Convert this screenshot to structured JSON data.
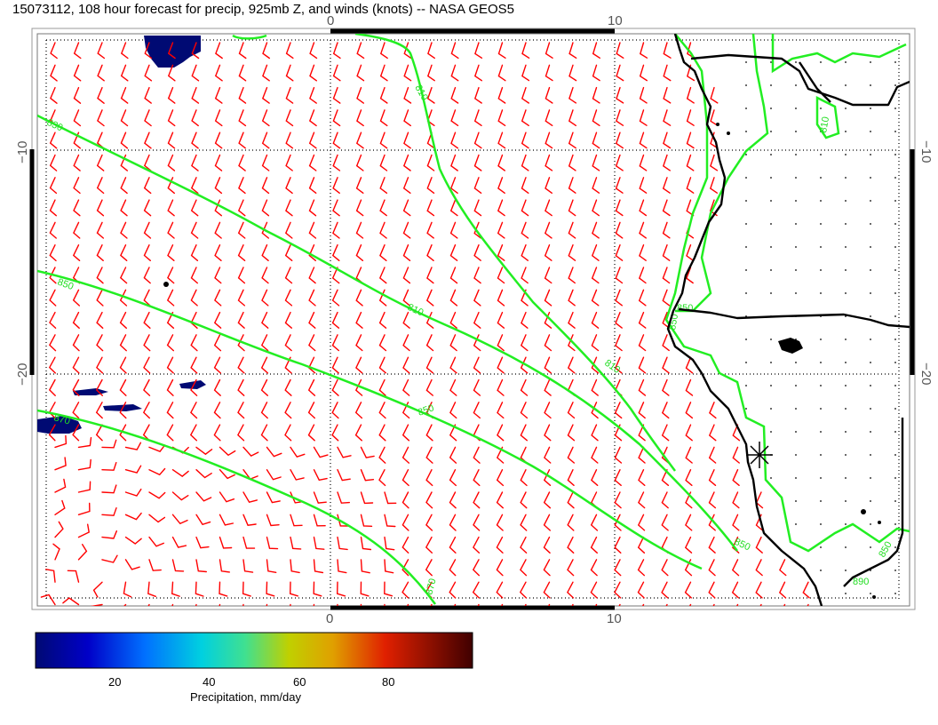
{
  "title": "15073112, 108 hour forecast for precip, 925mb Z, and winds (knots) -- NASA GEOS5",
  "axes": {
    "top_ticks": [
      "0",
      "10"
    ],
    "bottom_ticks": [
      "0",
      "10"
    ],
    "left_ticks": [
      "−10",
      "−20"
    ],
    "right_ticks": [
      "−10",
      "−20"
    ]
  },
  "contour_labels": [
    "830",
    "810",
    "850",
    "810",
    "870",
    "850",
    "810",
    "850",
    "870",
    "850",
    "850",
    "810",
    "850",
    "890"
  ],
  "colorbar": {
    "ticks": [
      "20",
      "40",
      "60",
      "80"
    ],
    "label": "Precipitation, mm/day"
  },
  "colors": {
    "wind_barb": "#ff0000",
    "height_contour": "#22ee22",
    "coastline": "#000000",
    "precip_low": "#000a73"
  },
  "icons": {
    "station_marker": "asterisk-marker-icon"
  }
}
